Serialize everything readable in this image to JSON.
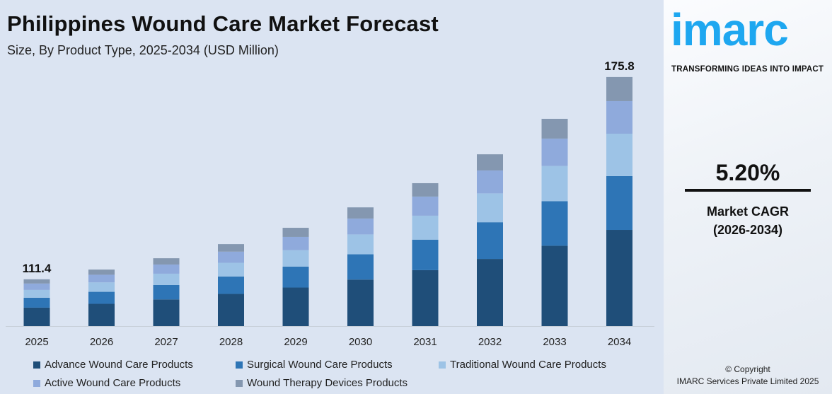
{
  "header": {
    "title": "Philippines Wound Care Market Forecast",
    "subtitle": "Size, By Product Type, 2025-2034 (USD Million)"
  },
  "chart_data": {
    "type": "bar",
    "stacked": true,
    "title": "Philippines Wound Care Market Forecast",
    "subtitle": "Size, By Product Type, 2025-2034 (USD Million)",
    "categories": [
      "2025",
      "2026",
      "2027",
      "2028",
      "2029",
      "2030",
      "2031",
      "2032",
      "2033",
      "2034"
    ],
    "series": [
      {
        "name": "Advance Wound Care Products",
        "color": "#1f4e79",
        "values": [
          43.9,
          45.1,
          46.4,
          48.1,
          50.1,
          52.6,
          55.6,
          59.1,
          63.0,
          67.9
        ]
      },
      {
        "name": "Surgical Wound Care Products",
        "color": "#2e75b6",
        "values": [
          23.6,
          24.3,
          25.1,
          26.1,
          27.2,
          28.6,
          30.3,
          32.3,
          34.9,
          38.0
        ]
      },
      {
        "name": "Traditional Wound Care Products",
        "color": "#9dc3e6",
        "values": [
          18.6,
          19.1,
          19.7,
          20.5,
          21.4,
          22.5,
          23.8,
          25.4,
          27.6,
          29.9
        ]
      },
      {
        "name": "Active Wound Care Products",
        "color": "#8faadc",
        "values": [
          15.2,
          15.5,
          16.0,
          16.6,
          17.2,
          18.0,
          19.0,
          20.2,
          21.5,
          23.0
        ]
      },
      {
        "name": "Wound Therapy Devices Products",
        "color": "#8497b0",
        "values": [
          10.1,
          10.5,
          10.9,
          11.3,
          11.9,
          12.6,
          13.3,
          14.2,
          15.5,
          17.0
        ]
      }
    ],
    "data_labels": {
      "2025": "111.4",
      "2034": "175.8"
    },
    "grid": false,
    "legend_position": "bottom"
  },
  "brand": {
    "logo": "imarc",
    "tagline": "TRANSFORMING IDEAS INTO IMPACT",
    "color": "#1ea7f0"
  },
  "cagr": {
    "value": "5.20%",
    "label": "Market CAGR",
    "period": "(2026-2034)"
  },
  "footer": {
    "copyright": "© Copyright",
    "company": "IMARC Services Private Limited 2025"
  }
}
